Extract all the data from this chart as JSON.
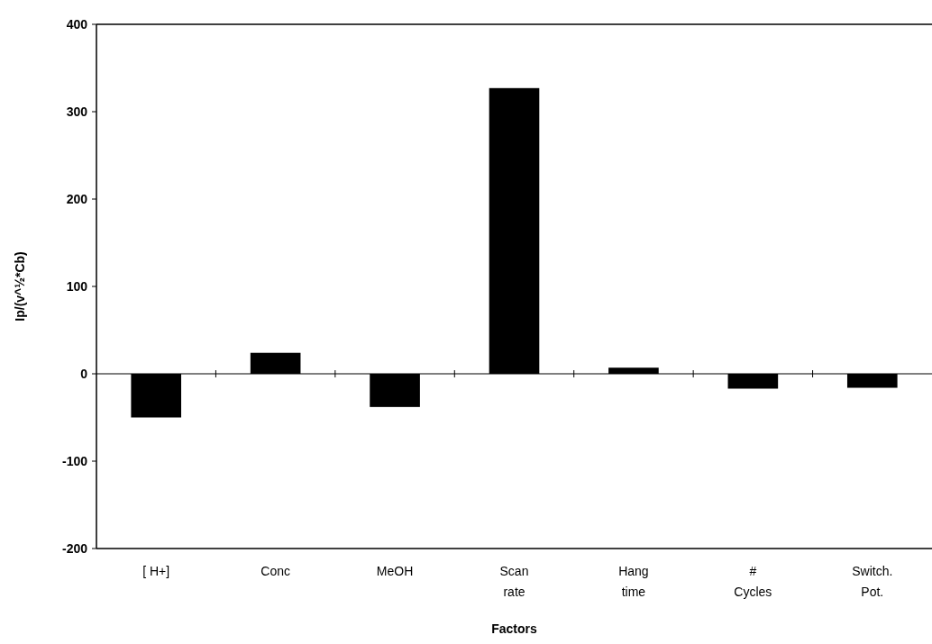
{
  "chart_data": {
    "type": "bar",
    "xlabel": "Factors",
    "ylabel": "Ip/(v^½*Cb)",
    "categories": [
      "[ H+]",
      "Conc",
      "MeOH",
      "Scan rate",
      "Hang time",
      "# Cycles",
      "Switch. Pot."
    ],
    "values": [
      -50,
      24,
      -38,
      327,
      7,
      -17,
      -16
    ],
    "color": "#000000",
    "ylim": [
      -200,
      400
    ],
    "yticks": [
      -200,
      -100,
      0,
      100,
      200,
      300,
      400
    ]
  }
}
